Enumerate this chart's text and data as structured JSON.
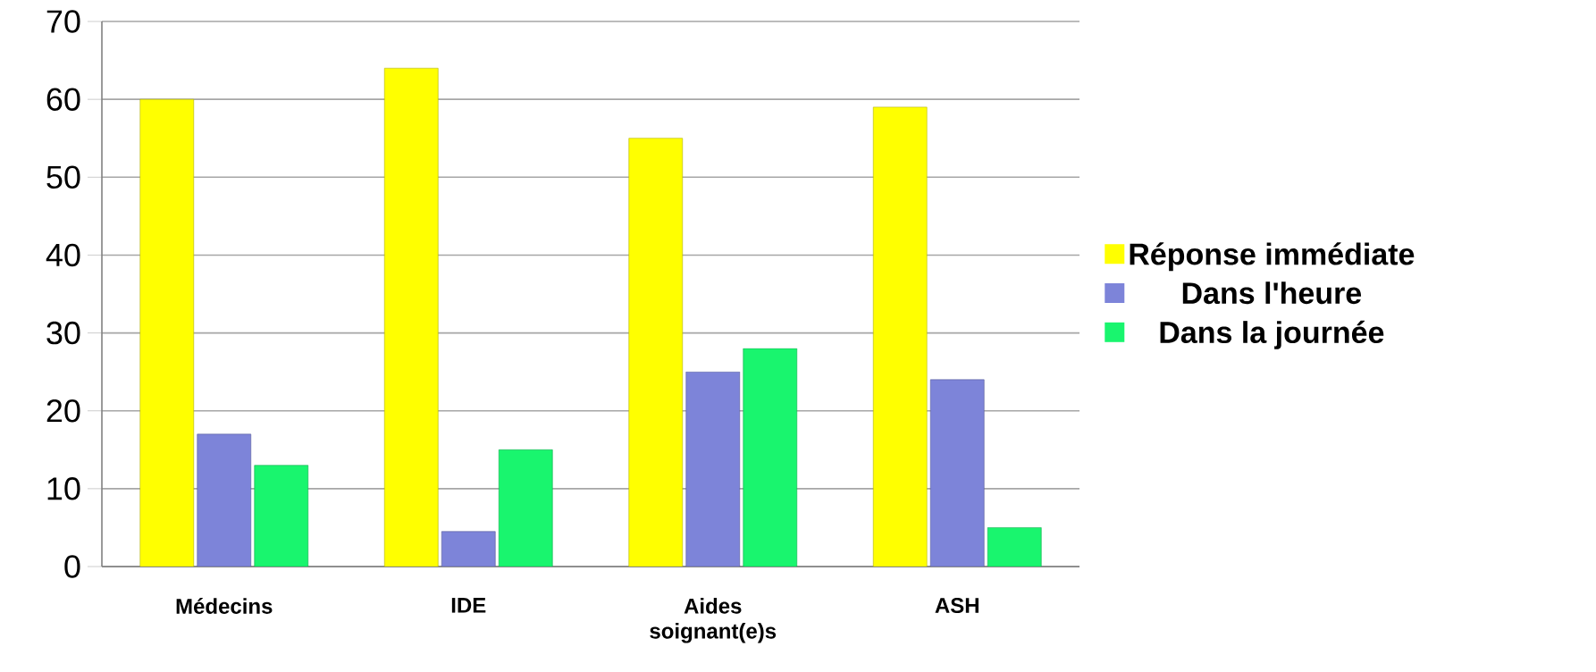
{
  "chart_data": {
    "type": "bar",
    "categories": [
      "Médecins",
      "IDE",
      "Aides soignant(e)s",
      "ASH"
    ],
    "series": [
      {
        "name": "Réponse immédiate",
        "color": "#ffff00",
        "values": [
          60,
          64,
          55,
          59
        ]
      },
      {
        "name": "Dans l'heure",
        "color": "#7d84d9",
        "values": [
          17,
          4.5,
          25,
          24
        ]
      },
      {
        "name": "Dans la journée",
        "color": "#19f56e",
        "values": [
          13,
          15,
          28,
          5
        ]
      }
    ],
    "ylim": [
      0,
      70
    ],
    "yticks": [
      0,
      10,
      20,
      30,
      40,
      50,
      60,
      70
    ],
    "grid": "y",
    "legend": "right"
  }
}
